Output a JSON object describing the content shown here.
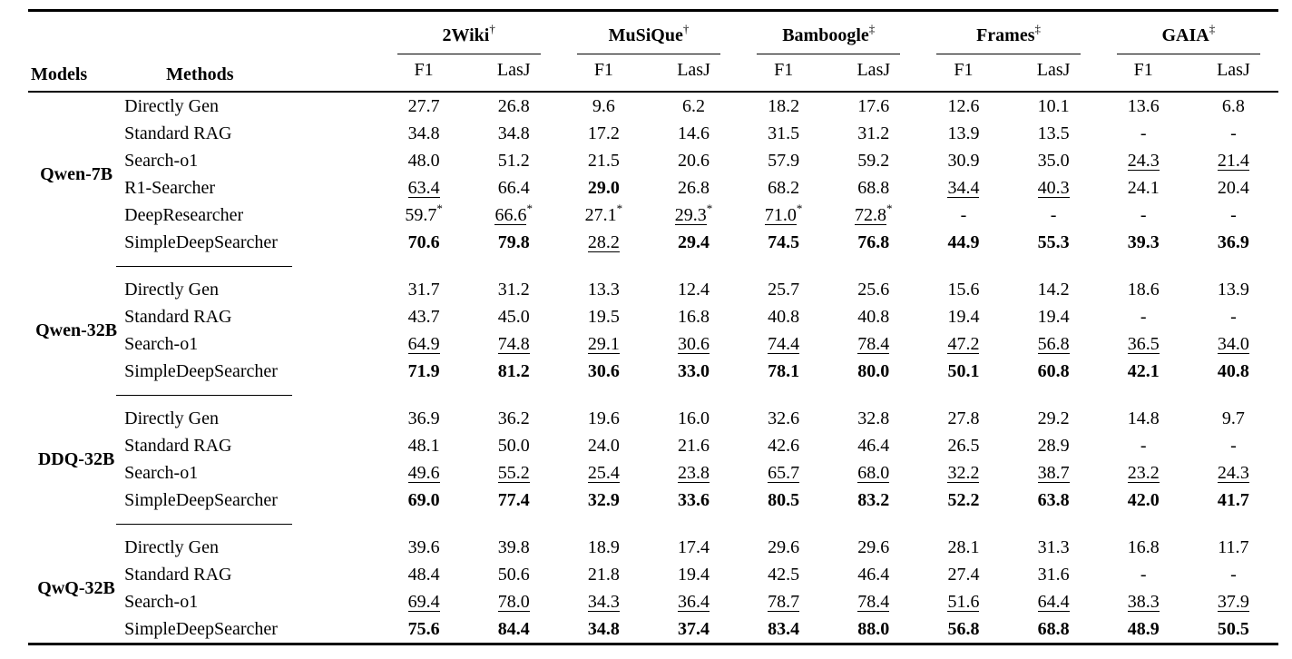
{
  "page": {
    "background": "#ffffff",
    "text_color": "#000000"
  },
  "table": {
    "header": {
      "models_label": "Models",
      "methods_label": "Methods",
      "groups": [
        {
          "label": "2Wiki",
          "marker": "†"
        },
        {
          "label": "MuSiQue",
          "marker": "†"
        },
        {
          "label": "Bamboogle",
          "marker": "‡"
        },
        {
          "label": "Frames",
          "marker": "‡"
        },
        {
          "label": "GAIA",
          "marker": "‡"
        }
      ],
      "metrics": [
        "F1",
        "LasJ"
      ]
    },
    "blocks": [
      {
        "model": "Qwen-7B",
        "rows": [
          {
            "method": "Directly Gen",
            "cells": [
              {
                "v": "27.7"
              },
              {
                "v": "26.8"
              },
              {
                "v": "9.6"
              },
              {
                "v": "6.2"
              },
              {
                "v": "18.2"
              },
              {
                "v": "17.6"
              },
              {
                "v": "12.6"
              },
              {
                "v": "10.1"
              },
              {
                "v": "13.6"
              },
              {
                "v": "6.8"
              }
            ]
          },
          {
            "method": "Standard RAG",
            "cells": [
              {
                "v": "34.8"
              },
              {
                "v": "34.8"
              },
              {
                "v": "17.2"
              },
              {
                "v": "14.6"
              },
              {
                "v": "31.5"
              },
              {
                "v": "31.2"
              },
              {
                "v": "13.9"
              },
              {
                "v": "13.5"
              },
              {
                "v": "-"
              },
              {
                "v": "-"
              }
            ]
          },
          {
            "method": "Search-o1",
            "cells": [
              {
                "v": "48.0"
              },
              {
                "v": "51.2"
              },
              {
                "v": "21.5"
              },
              {
                "v": "20.6"
              },
              {
                "v": "57.9"
              },
              {
                "v": "59.2"
              },
              {
                "v": "30.9"
              },
              {
                "v": "35.0"
              },
              {
                "v": "24.3",
                "u": true
              },
              {
                "v": "21.4",
                "u": true
              }
            ]
          },
          {
            "method": "R1-Searcher",
            "cells": [
              {
                "v": "63.4",
                "u": true
              },
              {
                "v": "66.4"
              },
              {
                "v": "29.0",
                "b": true
              },
              {
                "v": "26.8"
              },
              {
                "v": "68.2"
              },
              {
                "v": "68.8"
              },
              {
                "v": "34.4",
                "u": true
              },
              {
                "v": "40.3",
                "u": true
              },
              {
                "v": "24.1"
              },
              {
                "v": "20.4"
              }
            ]
          },
          {
            "method": "DeepResearcher",
            "cells": [
              {
                "v": "59.7",
                "sup": "*"
              },
              {
                "v": "66.6",
                "u": true,
                "sup": "*"
              },
              {
                "v": "27.1",
                "sup": "*"
              },
              {
                "v": "29.3",
                "u": true,
                "sup": "*"
              },
              {
                "v": "71.0",
                "u": true,
                "sup": "*"
              },
              {
                "v": "72.8",
                "u": true,
                "sup": "*"
              },
              {
                "v": "-"
              },
              {
                "v": "-"
              },
              {
                "v": "-"
              },
              {
                "v": "-"
              }
            ]
          },
          {
            "method": "SimpleDeepSearcher",
            "cells": [
              {
                "v": "70.6",
                "b": true
              },
              {
                "v": "79.8",
                "b": true
              },
              {
                "v": "28.2",
                "u": true
              },
              {
                "v": "29.4",
                "b": true
              },
              {
                "v": "74.5",
                "b": true
              },
              {
                "v": "76.8",
                "b": true
              },
              {
                "v": "44.9",
                "b": true
              },
              {
                "v": "55.3",
                "b": true
              },
              {
                "v": "39.3",
                "b": true
              },
              {
                "v": "36.9",
                "b": true
              }
            ]
          }
        ]
      },
      {
        "model": "Qwen-32B",
        "rows": [
          {
            "method": "Directly Gen",
            "cells": [
              {
                "v": "31.7"
              },
              {
                "v": "31.2"
              },
              {
                "v": "13.3"
              },
              {
                "v": "12.4"
              },
              {
                "v": "25.7"
              },
              {
                "v": "25.6"
              },
              {
                "v": "15.6"
              },
              {
                "v": "14.2"
              },
              {
                "v": "18.6"
              },
              {
                "v": "13.9"
              }
            ]
          },
          {
            "method": "Standard RAG",
            "cells": [
              {
                "v": "43.7"
              },
              {
                "v": "45.0"
              },
              {
                "v": "19.5"
              },
              {
                "v": "16.8"
              },
              {
                "v": "40.8"
              },
              {
                "v": "40.8"
              },
              {
                "v": "19.4"
              },
              {
                "v": "19.4"
              },
              {
                "v": "-"
              },
              {
                "v": "-"
              }
            ]
          },
          {
            "method": "Search-o1",
            "cells": [
              {
                "v": "64.9",
                "u": true
              },
              {
                "v": "74.8",
                "u": true
              },
              {
                "v": "29.1",
                "u": true
              },
              {
                "v": "30.6",
                "u": true
              },
              {
                "v": "74.4",
                "u": true
              },
              {
                "v": "78.4",
                "u": true
              },
              {
                "v": "47.2",
                "u": true
              },
              {
                "v": "56.8",
                "u": true
              },
              {
                "v": "36.5",
                "u": true
              },
              {
                "v": "34.0",
                "u": true
              }
            ]
          },
          {
            "method": "SimpleDeepSearcher",
            "cells": [
              {
                "v": "71.9",
                "b": true
              },
              {
                "v": "81.2",
                "b": true
              },
              {
                "v": "30.6",
                "b": true
              },
              {
                "v": "33.0",
                "b": true
              },
              {
                "v": "78.1",
                "b": true
              },
              {
                "v": "80.0",
                "b": true
              },
              {
                "v": "50.1",
                "b": true
              },
              {
                "v": "60.8",
                "b": true
              },
              {
                "v": "42.1",
                "b": true
              },
              {
                "v": "40.8",
                "b": true
              }
            ]
          }
        ]
      },
      {
        "model": "DDQ-32B",
        "rows": [
          {
            "method": "Directly Gen",
            "cells": [
              {
                "v": "36.9"
              },
              {
                "v": "36.2"
              },
              {
                "v": "19.6"
              },
              {
                "v": "16.0"
              },
              {
                "v": "32.6"
              },
              {
                "v": "32.8"
              },
              {
                "v": "27.8"
              },
              {
                "v": "29.2"
              },
              {
                "v": "14.8"
              },
              {
                "v": "9.7"
              }
            ]
          },
          {
            "method": "Standard RAG",
            "cells": [
              {
                "v": "48.1"
              },
              {
                "v": "50.0"
              },
              {
                "v": "24.0"
              },
              {
                "v": "21.6"
              },
              {
                "v": "42.6"
              },
              {
                "v": "46.4"
              },
              {
                "v": "26.5"
              },
              {
                "v": "28.9"
              },
              {
                "v": "-"
              },
              {
                "v": "-"
              }
            ]
          },
          {
            "method": "Search-o1",
            "cells": [
              {
                "v": "49.6",
                "u": true
              },
              {
                "v": "55.2",
                "u": true
              },
              {
                "v": "25.4",
                "u": true
              },
              {
                "v": "23.8",
                "u": true
              },
              {
                "v": "65.7",
                "u": true
              },
              {
                "v": "68.0",
                "u": true
              },
              {
                "v": "32.2",
                "u": true
              },
              {
                "v": "38.7",
                "u": true
              },
              {
                "v": "23.2",
                "u": true
              },
              {
                "v": "24.3",
                "u": true
              }
            ]
          },
          {
            "method": "SimpleDeepSearcher",
            "cells": [
              {
                "v": "69.0",
                "b": true
              },
              {
                "v": "77.4",
                "b": true
              },
              {
                "v": "32.9",
                "b": true
              },
              {
                "v": "33.6",
                "b": true
              },
              {
                "v": "80.5",
                "b": true
              },
              {
                "v": "83.2",
                "b": true
              },
              {
                "v": "52.2",
                "b": true
              },
              {
                "v": "63.8",
                "b": true
              },
              {
                "v": "42.0",
                "b": true
              },
              {
                "v": "41.7",
                "b": true
              }
            ]
          }
        ]
      },
      {
        "model": "QwQ-32B",
        "rows": [
          {
            "method": "Directly Gen",
            "cells": [
              {
                "v": "39.6"
              },
              {
                "v": "39.8"
              },
              {
                "v": "18.9"
              },
              {
                "v": "17.4"
              },
              {
                "v": "29.6"
              },
              {
                "v": "29.6"
              },
              {
                "v": "28.1"
              },
              {
                "v": "31.3"
              },
              {
                "v": "16.8"
              },
              {
                "v": "11.7"
              }
            ]
          },
          {
            "method": "Standard RAG",
            "cells": [
              {
                "v": "48.4"
              },
              {
                "v": "50.6"
              },
              {
                "v": "21.8"
              },
              {
                "v": "19.4"
              },
              {
                "v": "42.5"
              },
              {
                "v": "46.4"
              },
              {
                "v": "27.4"
              },
              {
                "v": "31.6"
              },
              {
                "v": "-"
              },
              {
                "v": "-"
              }
            ]
          },
          {
            "method": "Search-o1",
            "cells": [
              {
                "v": "69.4",
                "u": true
              },
              {
                "v": "78.0",
                "u": true
              },
              {
                "v": "34.3",
                "u": true
              },
              {
                "v": "36.4",
                "u": true
              },
              {
                "v": "78.7",
                "u": true
              },
              {
                "v": "78.4",
                "u": true
              },
              {
                "v": "51.6",
                "u": true
              },
              {
                "v": "64.4",
                "u": true
              },
              {
                "v": "38.3",
                "u": true
              },
              {
                "v": "37.9",
                "u": true
              }
            ]
          },
          {
            "method": "SimpleDeepSearcher",
            "cells": [
              {
                "v": "75.6",
                "b": true
              },
              {
                "v": "84.4",
                "b": true
              },
              {
                "v": "34.8",
                "b": true
              },
              {
                "v": "37.4",
                "b": true
              },
              {
                "v": "83.4",
                "b": true
              },
              {
                "v": "88.0",
                "b": true
              },
              {
                "v": "56.8",
                "b": true
              },
              {
                "v": "68.8",
                "b": true
              },
              {
                "v": "48.9",
                "b": true
              },
              {
                "v": "50.5",
                "b": true
              }
            ]
          }
        ]
      }
    ]
  }
}
